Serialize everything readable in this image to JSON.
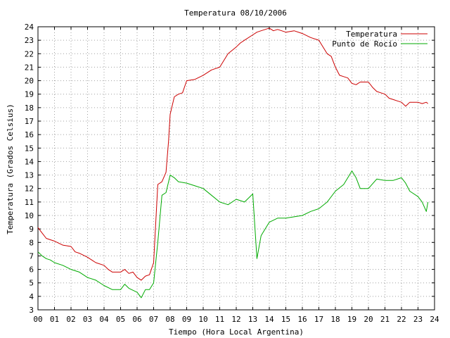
{
  "chart_data": {
    "type": "line",
    "title": "Temperatura 08/10/2006",
    "xlabel": "Tiempo (Hora Local Argentina)",
    "ylabel": "Temperatura (Grados Celsius)",
    "xlim": [
      0,
      24
    ],
    "ylim": [
      3,
      24
    ],
    "grid": true,
    "legend_position": "top-right",
    "x_ticks": [
      "00",
      "01",
      "02",
      "03",
      "04",
      "05",
      "06",
      "07",
      "08",
      "09",
      "10",
      "11",
      "12",
      "13",
      "14",
      "15",
      "16",
      "17",
      "18",
      "19",
      "20",
      "21",
      "22",
      "23",
      "24"
    ],
    "y_ticks": [
      3,
      4,
      5,
      6,
      7,
      8,
      9,
      10,
      11,
      12,
      13,
      14,
      15,
      16,
      17,
      18,
      19,
      20,
      21,
      22,
      23,
      24
    ],
    "series": [
      {
        "name": "Temperatura",
        "color": "#cc0000",
        "x": [
          0,
          0.25,
          0.5,
          0.75,
          1,
          1.5,
          2,
          2.25,
          2.5,
          3,
          3.25,
          3.5,
          4,
          4.25,
          4.5,
          5,
          5.25,
          5.5,
          5.75,
          6,
          6.25,
          6.5,
          6.75,
          7,
          7.25,
          7.5,
          7.75,
          7.9,
          8,
          8.25,
          8.5,
          8.75,
          9,
          9.5,
          10,
          10.5,
          11,
          11.25,
          11.5,
          12,
          12.25,
          12.5,
          13,
          13.25,
          13.5,
          13.75,
          14,
          14.25,
          14.5,
          14.75,
          15,
          15.5,
          16,
          16.5,
          17,
          17.25,
          17.5,
          17.75,
          18,
          18.25,
          18.5,
          18.75,
          19,
          19.25,
          19.5,
          20,
          20.25,
          20.5,
          20.75,
          21,
          21.25,
          21.5,
          21.75,
          22,
          22.25,
          22.5,
          23,
          23.25,
          23.5,
          23.6
        ],
        "y": [
          9.1,
          8.7,
          8.3,
          8.2,
          8.1,
          7.8,
          7.7,
          7.3,
          7.2,
          6.9,
          6.7,
          6.5,
          6.3,
          6.0,
          5.8,
          5.8,
          6.0,
          5.7,
          5.8,
          5.4,
          5.2,
          5.5,
          5.6,
          6.5,
          12.3,
          12.5,
          13.2,
          15.5,
          17.5,
          18.8,
          19.0,
          19.1,
          20.0,
          20.1,
          20.4,
          20.8,
          21.0,
          21.5,
          22.0,
          22.5,
          22.8,
          23.0,
          23.4,
          23.6,
          23.7,
          23.8,
          23.9,
          23.7,
          23.8,
          23.7,
          23.6,
          23.7,
          23.5,
          23.2,
          23.0,
          22.5,
          22.0,
          21.8,
          21.0,
          20.4,
          20.3,
          20.2,
          19.8,
          19.7,
          19.9,
          19.9,
          19.5,
          19.2,
          19.1,
          19.0,
          18.7,
          18.6,
          18.5,
          18.4,
          18.1,
          18.4,
          18.4,
          18.3,
          18.4,
          18.3
        ]
      },
      {
        "name": "Punto de Rocío",
        "color": "#00aa00",
        "x": [
          0,
          0.25,
          0.5,
          0.75,
          1,
          1.5,
          2,
          2.5,
          3,
          3.5,
          4,
          4.5,
          5,
          5.25,
          5.5,
          6,
          6.25,
          6.5,
          6.75,
          7,
          7.25,
          7.5,
          7.75,
          8,
          8.25,
          8.5,
          9,
          9.5,
          10,
          10.5,
          11,
          11.5,
          12,
          12.5,
          13,
          13.25,
          13.5,
          13.75,
          14,
          14.5,
          15,
          15.5,
          16,
          16.5,
          17,
          17.5,
          18,
          18.5,
          19,
          19.25,
          19.5,
          20,
          20.5,
          21,
          21.5,
          22,
          22.25,
          22.5,
          23,
          23.25,
          23.5,
          23.6
        ],
        "y": [
          7.3,
          7.0,
          6.8,
          6.7,
          6.5,
          6.3,
          6.0,
          5.8,
          5.4,
          5.2,
          4.8,
          4.5,
          4.5,
          4.9,
          4.6,
          4.3,
          3.9,
          4.5,
          4.5,
          5.0,
          8.0,
          11.5,
          11.7,
          13.0,
          12.8,
          12.5,
          12.4,
          12.2,
          12.0,
          11.5,
          11.0,
          10.8,
          11.2,
          11.0,
          11.6,
          6.8,
          8.5,
          9.0,
          9.5,
          9.8,
          9.8,
          9.9,
          10.0,
          10.3,
          10.5,
          11.0,
          11.8,
          12.3,
          13.3,
          12.8,
          12.0,
          12.0,
          12.7,
          12.6,
          12.6,
          12.8,
          12.4,
          11.8,
          11.4,
          11.0,
          10.3,
          11.0
        ]
      }
    ]
  }
}
